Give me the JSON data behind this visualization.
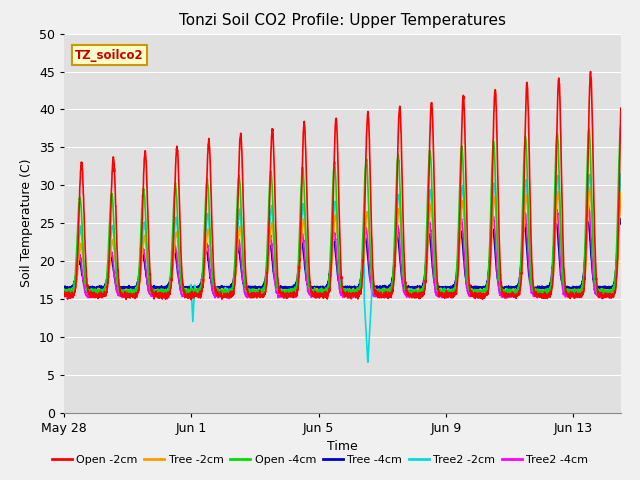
{
  "title": "Tonzi Soil CO2 Profile: Upper Temperatures",
  "xlabel": "Time",
  "ylabel": "Soil Temperature (C)",
  "ylim": [
    0,
    50
  ],
  "xlim_days": [
    0,
    17.5
  ],
  "fig_facecolor": "#f0f0f0",
  "plot_bg_color": "#e0e0e0",
  "grid_color": "#ffffff",
  "title_fontsize": 11,
  "label_fontsize": 9,
  "tick_fontsize": 9,
  "watermark_text": "TZ_soilco2",
  "watermark_bg": "#ffffcc",
  "watermark_border": "#cc9900",
  "series": {
    "Open -2cm": {
      "color": "#ff0000",
      "lw": 1.2
    },
    "Tree -2cm": {
      "color": "#ff9900",
      "lw": 1.2
    },
    "Open -4cm": {
      "color": "#00dd00",
      "lw": 1.2
    },
    "Tree -4cm": {
      "color": "#0000cc",
      "lw": 1.2
    },
    "Tree2 -2cm": {
      "color": "#00dddd",
      "lw": 1.2
    },
    "Tree2 -4cm": {
      "color": "#ff00ff",
      "lw": 1.2
    }
  },
  "x_tick_labels": [
    "May 28",
    "Jun 1",
    "Jun 5",
    "Jun 9",
    "Jun 13"
  ],
  "x_tick_positions": [
    0,
    4,
    8,
    12,
    16
  ],
  "yticks": [
    0,
    5,
    10,
    15,
    20,
    25,
    30,
    35,
    40,
    45,
    50
  ],
  "cyan_spike1_day": 4.05,
  "cyan_spike1_val": 12.0,
  "cyan_spike2_day": 9.55,
  "cyan_spike2_val": 6.5
}
